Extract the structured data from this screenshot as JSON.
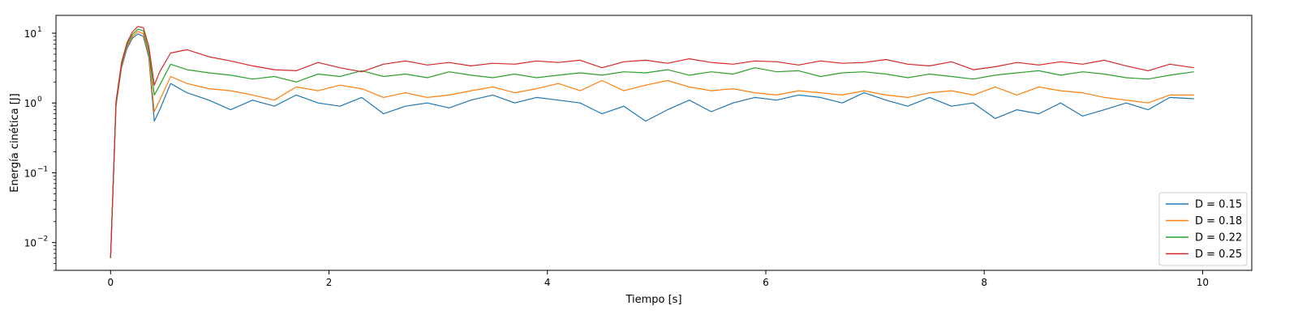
{
  "chart_data": {
    "type": "line",
    "title": "",
    "xlabel": "Tiempo [s]",
    "ylabel": "Energía cinética [J]",
    "xlim": [
      -0.5,
      10.45
    ],
    "ylim": [
      0.004,
      18
    ],
    "yscale": "log",
    "grid": false,
    "legend_position": "lower-right",
    "x_ticks": [
      0,
      2,
      4,
      6,
      8,
      10
    ],
    "x_tick_labels": [
      "0",
      "2",
      "4",
      "6",
      "8",
      "10"
    ],
    "y_ticks": [
      0.01,
      0.1,
      1,
      10
    ],
    "y_tick_labels": [
      "10",
      "10",
      "10",
      "10"
    ],
    "y_tick_exponents": [
      "−2",
      "−1",
      "0",
      "1"
    ],
    "series": [
      {
        "name": "D = 0.15",
        "color": "#1f77b4",
        "x": [
          0,
          0.05,
          0.1,
          0.15,
          0.2,
          0.25,
          0.3,
          0.35,
          0.4,
          0.45,
          0.55,
          0.7,
          0.9,
          1.1,
          1.3,
          1.5,
          1.7,
          1.9,
          2.1,
          2.3,
          2.5,
          2.7,
          2.9,
          3.1,
          3.3,
          3.5,
          3.7,
          3.9,
          4.1,
          4.3,
          4.5,
          4.7,
          4.9,
          5.1,
          5.3,
          5.5,
          5.7,
          5.9,
          6.1,
          6.3,
          6.5,
          6.7,
          6.9,
          7.1,
          7.3,
          7.5,
          7.7,
          7.9,
          8.1,
          8.3,
          8.5,
          8.7,
          8.9,
          9.1,
          9.3,
          9.5,
          9.7,
          9.92
        ],
        "y": [
          0.006,
          0.9,
          3.2,
          6.0,
          8.5,
          9.8,
          9.0,
          4.5,
          0.55,
          0.8,
          1.9,
          1.4,
          1.1,
          0.8,
          1.1,
          0.9,
          1.3,
          1.0,
          0.9,
          1.2,
          0.7,
          0.9,
          1.0,
          0.85,
          1.1,
          1.3,
          1.0,
          1.2,
          1.1,
          1.0,
          0.7,
          0.9,
          0.55,
          0.8,
          1.1,
          0.75,
          1.0,
          1.2,
          1.1,
          1.3,
          1.2,
          1.0,
          1.4,
          1.1,
          0.9,
          1.2,
          0.9,
          1.0,
          0.6,
          0.8,
          0.7,
          1.0,
          0.65,
          0.8,
          1.0,
          0.8,
          1.2,
          1.15
        ]
      },
      {
        "name": "D = 0.18",
        "color": "#ff7f0e",
        "x": [
          0,
          0.05,
          0.1,
          0.15,
          0.2,
          0.25,
          0.3,
          0.35,
          0.4,
          0.45,
          0.55,
          0.7,
          0.9,
          1.1,
          1.3,
          1.5,
          1.7,
          1.9,
          2.1,
          2.3,
          2.5,
          2.7,
          2.9,
          3.1,
          3.3,
          3.5,
          3.7,
          3.9,
          4.1,
          4.3,
          4.5,
          4.7,
          4.9,
          5.1,
          5.3,
          5.5,
          5.7,
          5.9,
          6.1,
          6.3,
          6.5,
          6.7,
          6.9,
          7.1,
          7.3,
          7.5,
          7.7,
          7.9,
          8.1,
          8.3,
          8.5,
          8.7,
          8.9,
          9.1,
          9.3,
          9.5,
          9.7,
          9.92
        ],
        "y": [
          0.006,
          0.95,
          3.4,
          6.4,
          9.0,
          10.6,
          9.8,
          5.0,
          0.75,
          1.1,
          2.4,
          1.9,
          1.6,
          1.5,
          1.3,
          1.1,
          1.7,
          1.5,
          1.8,
          1.6,
          1.2,
          1.4,
          1.2,
          1.3,
          1.5,
          1.7,
          1.4,
          1.6,
          1.9,
          1.5,
          2.1,
          1.5,
          1.8,
          2.1,
          1.7,
          1.5,
          1.6,
          1.4,
          1.3,
          1.5,
          1.4,
          1.3,
          1.5,
          1.3,
          1.2,
          1.4,
          1.5,
          1.3,
          1.7,
          1.3,
          1.7,
          1.5,
          1.4,
          1.2,
          1.1,
          1.0,
          1.3,
          1.3
        ]
      },
      {
        "name": "D = 0.22",
        "color": "#2ca02c",
        "x": [
          0,
          0.05,
          0.1,
          0.15,
          0.2,
          0.25,
          0.3,
          0.35,
          0.4,
          0.45,
          0.55,
          0.7,
          0.9,
          1.1,
          1.3,
          1.5,
          1.7,
          1.9,
          2.1,
          2.3,
          2.5,
          2.7,
          2.9,
          3.1,
          3.3,
          3.5,
          3.7,
          3.9,
          4.1,
          4.3,
          4.5,
          4.7,
          4.9,
          5.1,
          5.3,
          5.5,
          5.7,
          5.9,
          6.1,
          6.3,
          6.5,
          6.7,
          6.9,
          7.1,
          7.3,
          7.5,
          7.7,
          7.9,
          8.1,
          8.3,
          8.5,
          8.7,
          8.9,
          9.1,
          9.3,
          9.5,
          9.7,
          9.92
        ],
        "y": [
          0.006,
          1.0,
          3.6,
          6.8,
          9.6,
          11.4,
          10.8,
          5.6,
          1.3,
          1.8,
          3.6,
          3.0,
          2.7,
          2.5,
          2.2,
          2.4,
          2.0,
          2.6,
          2.4,
          2.9,
          2.4,
          2.6,
          2.3,
          2.8,
          2.5,
          2.3,
          2.6,
          2.3,
          2.5,
          2.7,
          2.5,
          2.8,
          2.7,
          3.0,
          2.5,
          2.8,
          2.6,
          3.2,
          2.8,
          2.9,
          2.4,
          2.7,
          2.8,
          2.6,
          2.3,
          2.6,
          2.4,
          2.2,
          2.5,
          2.7,
          2.9,
          2.5,
          2.8,
          2.6,
          2.3,
          2.2,
          2.5,
          2.8
        ]
      },
      {
        "name": "D = 0.25",
        "color": "#d62728",
        "x": [
          0,
          0.05,
          0.1,
          0.15,
          0.2,
          0.25,
          0.3,
          0.35,
          0.4,
          0.45,
          0.55,
          0.7,
          0.9,
          1.1,
          1.3,
          1.5,
          1.7,
          1.9,
          2.1,
          2.3,
          2.5,
          2.7,
          2.9,
          3.1,
          3.3,
          3.5,
          3.7,
          3.9,
          4.1,
          4.3,
          4.5,
          4.7,
          4.9,
          5.1,
          5.3,
          5.5,
          5.7,
          5.9,
          6.1,
          6.3,
          6.5,
          6.7,
          6.9,
          7.1,
          7.3,
          7.5,
          7.7,
          7.9,
          8.1,
          8.3,
          8.5,
          8.7,
          8.9,
          9.1,
          9.3,
          9.5,
          9.7,
          9.92
        ],
        "y": [
          0.006,
          1.05,
          3.8,
          7.3,
          10.4,
          12.5,
          12.0,
          6.5,
          1.8,
          2.8,
          5.2,
          5.8,
          4.6,
          4.0,
          3.4,
          3.0,
          2.9,
          3.8,
          3.2,
          2.8,
          3.6,
          4.0,
          3.5,
          3.8,
          3.4,
          3.7,
          3.6,
          4.0,
          3.8,
          4.1,
          3.2,
          3.9,
          4.1,
          3.7,
          4.3,
          3.8,
          3.6,
          4.0,
          3.9,
          3.5,
          4.0,
          3.7,
          3.8,
          4.2,
          3.6,
          3.4,
          3.9,
          3.0,
          3.3,
          3.8,
          3.5,
          3.9,
          3.6,
          4.1,
          3.4,
          2.9,
          3.6,
          3.2
        ]
      }
    ]
  }
}
